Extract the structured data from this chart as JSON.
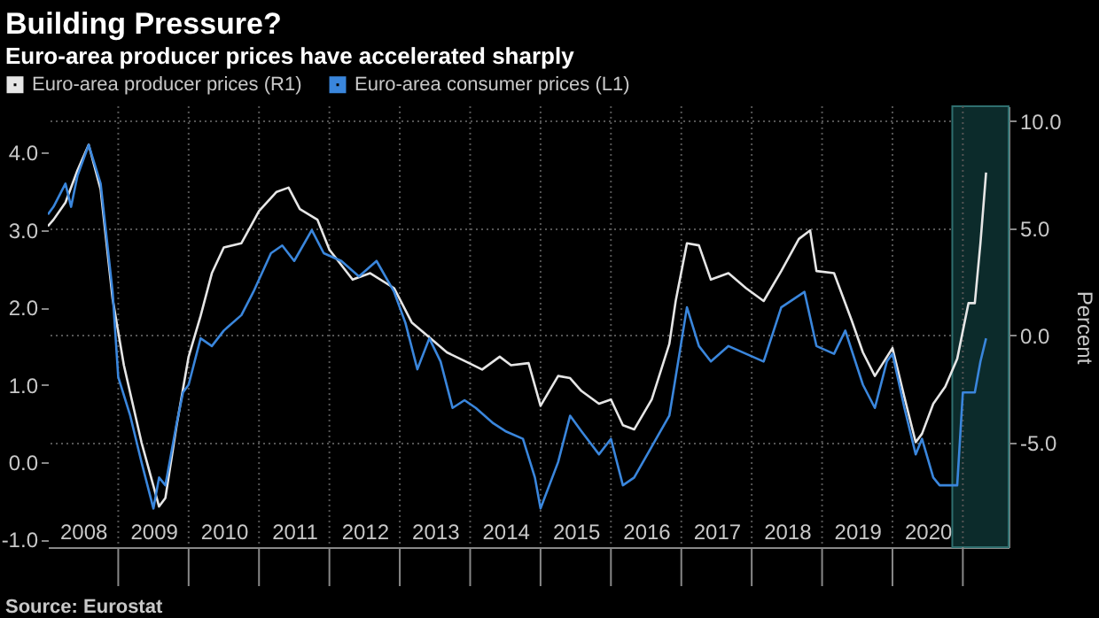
{
  "chart_data": {
    "type": "line",
    "title": "Building Pressure?",
    "subtitle": "Euro-area producer prices have accelerated sharply",
    "y2label": "Percent",
    "annotations": [
      "Source: Eurostat"
    ],
    "legend": "top left",
    "grid": true,
    "xlim": [
      2008.0,
      2021.65
    ],
    "xticks": [
      {
        "value": 2009,
        "label": null
      },
      {
        "value": 2010,
        "label": null
      },
      {
        "value": 2011,
        "label": null
      },
      {
        "value": 2012,
        "label": null
      },
      {
        "value": 2013,
        "label": null
      },
      {
        "value": 2014,
        "label": null
      },
      {
        "value": 2015,
        "label": null
      },
      {
        "value": 2016,
        "label": null
      },
      {
        "value": 2017,
        "label": null
      },
      {
        "value": 2018,
        "label": null
      },
      {
        "value": 2019,
        "label": null
      },
      {
        "value": 2020,
        "label": null
      },
      {
        "value": 2021,
        "label": null
      },
      {
        "value": 2008.5,
        "label": "2008"
      },
      {
        "value": 2009.5,
        "label": "2009"
      },
      {
        "value": 2010.5,
        "label": "2010"
      },
      {
        "value": 2011.5,
        "label": "2011"
      },
      {
        "value": 2012.5,
        "label": "2012"
      },
      {
        "value": 2013.5,
        "label": "2013"
      },
      {
        "value": 2014.5,
        "label": "2014"
      },
      {
        "value": 2015.5,
        "label": "2015"
      },
      {
        "value": 2016.5,
        "label": "2016"
      },
      {
        "value": 2017.5,
        "label": "2017"
      },
      {
        "value": 2018.5,
        "label": "2018"
      },
      {
        "value": 2019.5,
        "label": "2019"
      },
      {
        "value": 2020.5,
        "label": "2020"
      }
    ],
    "ylim": [
      -1.1,
      4.6
    ],
    "yticks": [
      {
        "value": -1,
        "label": "-1.0"
      },
      {
        "value": 0,
        "label": "0.0"
      },
      {
        "value": 1,
        "label": "1.0"
      },
      {
        "value": 2,
        "label": "2.0"
      },
      {
        "value": 3,
        "label": "3.0"
      },
      {
        "value": 4,
        "label": "4.0"
      }
    ],
    "y2lim": [
      -9.9,
      10.7
    ],
    "y2ticks": [
      {
        "value": -5,
        "label": "-5.0"
      },
      {
        "value": 0,
        "label": "0.0"
      },
      {
        "value": 5,
        "label": "5.0"
      },
      {
        "value": 10,
        "label": "10.0"
      }
    ],
    "bands": [
      {
        "axis": "x",
        "from": 2020.85,
        "to": 2021.65,
        "color": "#0c2b2b"
      }
    ],
    "series": [
      {
        "name": "Euro-area producer prices (R1)",
        "color": "#e6e6e6",
        "axis": "y2",
        "x": [
          2008.0,
          2008.08,
          2008.25,
          2008.42,
          2008.58,
          2008.75,
          2008.92,
          2009.08,
          2009.33,
          2009.58,
          2009.67,
          2009.83,
          2010.0,
          2010.17,
          2010.33,
          2010.5,
          2010.75,
          2011.0,
          2011.25,
          2011.42,
          2011.58,
          2011.83,
          2012.0,
          2012.33,
          2012.58,
          2012.92,
          2013.17,
          2013.42,
          2013.67,
          2013.92,
          2014.17,
          2014.42,
          2014.58,
          2014.83,
          2015.0,
          2015.25,
          2015.42,
          2015.58,
          2015.83,
          2016.0,
          2016.17,
          2016.33,
          2016.58,
          2016.83,
          2016.92,
          2017.08,
          2017.25,
          2017.42,
          2017.67,
          2017.92,
          2018.17,
          2018.42,
          2018.67,
          2018.83,
          2018.92,
          2019.17,
          2019.42,
          2019.58,
          2019.75,
          2020.0,
          2020.17,
          2020.33,
          2020.42,
          2020.58,
          2020.75,
          2020.92,
          2021.0,
          2021.08,
          2021.17,
          2021.25,
          2021.33
        ],
        "values": [
          5.1,
          5.4,
          6.2,
          7.7,
          8.9,
          6.8,
          1.7,
          -1.4,
          -5.0,
          -8.0,
          -7.6,
          -4.2,
          -1.0,
          0.9,
          2.9,
          4.1,
          4.3,
          5.8,
          6.7,
          6.9,
          5.9,
          5.4,
          4.0,
          2.6,
          2.9,
          2.2,
          0.6,
          -0.1,
          -0.8,
          -1.2,
          -1.6,
          -1.0,
          -1.4,
          -1.3,
          -3.3,
          -1.9,
          -2.0,
          -2.6,
          -3.2,
          -3.0,
          -4.2,
          -4.4,
          -3.0,
          -0.4,
          1.6,
          4.3,
          4.2,
          2.6,
          2.9,
          2.2,
          1.6,
          3.0,
          4.5,
          4.9,
          3.0,
          2.9,
          0.7,
          -0.8,
          -1.9,
          -0.6,
          -2.9,
          -5.0,
          -4.6,
          -3.2,
          -2.4,
          -1.1,
          0.2,
          1.5,
          1.5,
          4.3,
          7.6
        ]
      },
      {
        "name": "Euro-area consumer prices (L1)",
        "color": "#3a86dc",
        "x": [
          2008.0,
          2008.08,
          2008.25,
          2008.33,
          2008.42,
          2008.58,
          2008.75,
          2008.92,
          2009.0,
          2009.17,
          2009.33,
          2009.5,
          2009.58,
          2009.67,
          2009.83,
          2009.92,
          2010.0,
          2010.17,
          2010.33,
          2010.5,
          2010.75,
          2010.92,
          2011.17,
          2011.33,
          2011.5,
          2011.75,
          2011.92,
          2012.17,
          2012.42,
          2012.67,
          2012.92,
          2013.08,
          2013.25,
          2013.42,
          2013.58,
          2013.75,
          2013.92,
          2014.08,
          2014.33,
          2014.5,
          2014.75,
          2014.92,
          2015.0,
          2015.25,
          2015.42,
          2015.58,
          2015.83,
          2016.0,
          2016.17,
          2016.33,
          2016.58,
          2016.83,
          2016.92,
          2017.08,
          2017.25,
          2017.42,
          2017.67,
          2017.92,
          2018.17,
          2018.42,
          2018.75,
          2018.92,
          2019.17,
          2019.33,
          2019.58,
          2019.75,
          2019.92,
          2020.0,
          2020.17,
          2020.33,
          2020.42,
          2020.58,
          2020.67,
          2020.92,
          2021.0,
          2021.17,
          2021.25,
          2021.33
        ],
        "values": [
          3.2,
          3.3,
          3.6,
          3.3,
          3.7,
          4.1,
          3.6,
          2.2,
          1.1,
          0.6,
          0.0,
          -0.6,
          -0.2,
          -0.3,
          0.5,
          0.9,
          1.0,
          1.6,
          1.5,
          1.7,
          1.9,
          2.2,
          2.7,
          2.8,
          2.6,
          3.0,
          2.7,
          2.6,
          2.4,
          2.6,
          2.2,
          1.8,
          1.2,
          1.6,
          1.3,
          0.7,
          0.8,
          0.7,
          0.5,
          0.4,
          0.3,
          -0.2,
          -0.6,
          0.0,
          0.6,
          0.4,
          0.1,
          0.3,
          -0.3,
          -0.2,
          0.2,
          0.6,
          1.1,
          2.0,
          1.5,
          1.3,
          1.5,
          1.4,
          1.3,
          2.0,
          2.2,
          1.5,
          1.4,
          1.7,
          1.0,
          0.7,
          1.3,
          1.4,
          0.7,
          0.1,
          0.3,
          -0.2,
          -0.3,
          -0.3,
          0.9,
          0.9,
          1.3,
          1.6
        ]
      }
    ]
  }
}
